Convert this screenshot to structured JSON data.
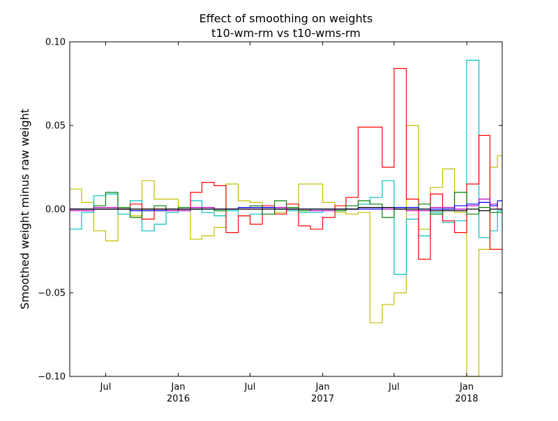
{
  "chart_data": {
    "type": "line",
    "title": "Effect of smoothing on weights",
    "subtitle": "t10-wm-rm vs t10-wms-rm",
    "xlabel": "",
    "ylabel": "Smoothed weight minus raw weight",
    "x_start": "2015-04-01",
    "x_end": "2018-04-01",
    "ylim": [
      -0.1,
      0.1
    ],
    "yticks": [
      0.1,
      0.05,
      0.0,
      -0.05,
      -0.1
    ],
    "ytick_labels": [
      "0.10",
      "0.05",
      "0.00",
      "−0.05",
      "−0.10"
    ],
    "xticks": [
      {
        "date": "2015-07-01",
        "label": "Jul",
        "year": ""
      },
      {
        "date": "2016-01-01",
        "label": "Jan",
        "year": "2016"
      },
      {
        "date": "2016-07-01",
        "label": "Jul",
        "year": ""
      },
      {
        "date": "2017-01-01",
        "label": "Jan",
        "year": "2017"
      },
      {
        "date": "2017-07-01",
        "label": "Jul",
        "year": ""
      },
      {
        "date": "2018-01-01",
        "label": "Jan",
        "year": "2018"
      }
    ],
    "grid": false,
    "legend": "none",
    "series": [
      {
        "color": "#bfbf00",
        "steps": [
          [
            "2015-04-01",
            0.012
          ],
          [
            "2015-05-01",
            0.004
          ],
          [
            "2015-06-01",
            -0.013
          ],
          [
            "2015-07-01",
            -0.019
          ],
          [
            "2015-08-01",
            0.001
          ],
          [
            "2015-09-01",
            -0.004
          ],
          [
            "2015-10-01",
            0.017
          ],
          [
            "2015-11-01",
            0.006
          ],
          [
            "2015-12-01",
            0.006
          ],
          [
            "2016-01-01",
            0.0
          ],
          [
            "2016-02-01",
            -0.018
          ],
          [
            "2016-03-01",
            -0.016
          ],
          [
            "2016-04-01",
            -0.011
          ],
          [
            "2016-05-01",
            0.015
          ],
          [
            "2016-06-01",
            0.005
          ],
          [
            "2016-07-01",
            0.004
          ],
          [
            "2016-08-01",
            0.001
          ],
          [
            "2016-09-01",
            -0.002
          ],
          [
            "2016-10-01",
            0.0
          ],
          [
            "2016-11-01",
            0.015
          ],
          [
            "2016-12-01",
            0.015
          ],
          [
            "2017-01-01",
            0.004
          ],
          [
            "2017-02-01",
            -0.002
          ],
          [
            "2017-03-01",
            -0.003
          ],
          [
            "2017-04-01",
            -0.002
          ],
          [
            "2017-05-01",
            -0.068
          ],
          [
            "2017-06-01",
            -0.057
          ],
          [
            "2017-07-01",
            -0.05
          ],
          [
            "2017-08-01",
            0.05
          ],
          [
            "2017-09-01",
            -0.012
          ],
          [
            "2017-10-01",
            0.013
          ],
          [
            "2017-11-01",
            0.024
          ],
          [
            "2017-12-01",
            -0.002
          ],
          [
            "2018-01-01",
            -0.1
          ],
          [
            "2018-02-01",
            -0.024
          ],
          [
            "2018-03-01",
            0.025
          ],
          [
            "2018-03-20",
            0.032
          ]
        ]
      },
      {
        "color": "#00bfbf",
        "steps": [
          [
            "2015-04-01",
            -0.012
          ],
          [
            "2015-05-01",
            -0.002
          ],
          [
            "2015-06-01",
            0.008
          ],
          [
            "2015-07-01",
            0.009
          ],
          [
            "2015-08-01",
            -0.003
          ],
          [
            "2015-09-01",
            0.005
          ],
          [
            "2015-10-01",
            -0.013
          ],
          [
            "2015-11-01",
            -0.009
          ],
          [
            "2015-12-01",
            -0.002
          ],
          [
            "2016-01-01",
            -0.001
          ],
          [
            "2016-02-01",
            0.005
          ],
          [
            "2016-03-01",
            -0.002
          ],
          [
            "2016-04-01",
            -0.004
          ],
          [
            "2016-05-01",
            -0.001
          ],
          [
            "2016-06-01",
            -0.004
          ],
          [
            "2016-07-01",
            -0.003
          ],
          [
            "2016-08-01",
            0.001
          ],
          [
            "2016-09-01",
            0.0
          ],
          [
            "2016-10-01",
            -0.001
          ],
          [
            "2016-11-01",
            -0.002
          ],
          [
            "2016-12-01",
            -0.002
          ],
          [
            "2017-01-01",
            -0.001
          ],
          [
            "2017-02-01",
            -0.001
          ],
          [
            "2017-03-01",
            0.0
          ],
          [
            "2017-04-01",
            0.003
          ],
          [
            "2017-05-01",
            0.007
          ],
          [
            "2017-06-01",
            0.017
          ],
          [
            "2017-07-01",
            -0.039
          ],
          [
            "2017-08-01",
            -0.006
          ],
          [
            "2017-09-01",
            -0.016
          ],
          [
            "2017-10-01",
            -0.002
          ],
          [
            "2017-11-01",
            -0.008
          ],
          [
            "2017-12-01",
            -0.007
          ],
          [
            "2018-01-01",
            0.089
          ],
          [
            "2018-02-01",
            -0.017
          ],
          [
            "2018-03-01",
            -0.013
          ],
          [
            "2018-03-20",
            -0.001
          ]
        ]
      },
      {
        "color": "#ff0000",
        "steps": [
          [
            "2015-04-01",
            0.0
          ],
          [
            "2015-05-01",
            0.0
          ],
          [
            "2015-06-01",
            0.0
          ],
          [
            "2015-07-01",
            0.0
          ],
          [
            "2015-08-01",
            0.0
          ],
          [
            "2015-09-01",
            0.003
          ],
          [
            "2015-10-01",
            -0.006
          ],
          [
            "2015-11-01",
            0.0
          ],
          [
            "2015-12-01",
            0.0
          ],
          [
            "2016-01-01",
            0.0
          ],
          [
            "2016-02-01",
            0.01
          ],
          [
            "2016-03-01",
            0.016
          ],
          [
            "2016-04-01",
            0.014
          ],
          [
            "2016-05-01",
            -0.014
          ],
          [
            "2016-06-01",
            -0.004
          ],
          [
            "2016-07-01",
            -0.009
          ],
          [
            "2016-08-01",
            0.002
          ],
          [
            "2016-09-01",
            -0.003
          ],
          [
            "2016-10-01",
            0.003
          ],
          [
            "2016-11-01",
            -0.01
          ],
          [
            "2016-12-01",
            -0.012
          ],
          [
            "2017-01-01",
            -0.005
          ],
          [
            "2017-02-01",
            0.002
          ],
          [
            "2017-03-01",
            0.007
          ],
          [
            "2017-04-01",
            0.049
          ],
          [
            "2017-05-01",
            0.049
          ],
          [
            "2017-06-01",
            0.025
          ],
          [
            "2017-07-01",
            0.084
          ],
          [
            "2017-08-01",
            0.006
          ],
          [
            "2017-09-01",
            -0.03
          ],
          [
            "2017-10-01",
            0.009
          ],
          [
            "2017-11-01",
            -0.007
          ],
          [
            "2017-12-01",
            -0.014
          ],
          [
            "2018-01-01",
            0.015
          ],
          [
            "2018-02-01",
            0.044
          ],
          [
            "2018-03-01",
            -0.024
          ],
          [
            "2018-03-20",
            -0.024
          ]
        ]
      },
      {
        "color": "#008000",
        "steps": [
          [
            "2015-04-01",
            0.0
          ],
          [
            "2015-05-01",
            0.0
          ],
          [
            "2015-06-01",
            0.002
          ],
          [
            "2015-07-01",
            0.01
          ],
          [
            "2015-08-01",
            0.001
          ],
          [
            "2015-09-01",
            -0.005
          ],
          [
            "2015-10-01",
            0.0
          ],
          [
            "2015-11-01",
            0.002
          ],
          [
            "2015-12-01",
            -0.001
          ],
          [
            "2016-01-01",
            0.001
          ],
          [
            "2016-02-01",
            0.0
          ],
          [
            "2016-03-01",
            0.001
          ],
          [
            "2016-04-01",
            -0.001
          ],
          [
            "2016-05-01",
            0.0
          ],
          [
            "2016-06-01",
            0.001
          ],
          [
            "2016-07-01",
            0.002
          ],
          [
            "2016-08-01",
            -0.003
          ],
          [
            "2016-09-01",
            0.005
          ],
          [
            "2016-10-01",
            0.001
          ],
          [
            "2016-11-01",
            -0.001
          ],
          [
            "2016-12-01",
            0.0
          ],
          [
            "2017-01-01",
            0.0
          ],
          [
            "2017-02-01",
            -0.001
          ],
          [
            "2017-03-01",
            0.002
          ],
          [
            "2017-04-01",
            0.005
          ],
          [
            "2017-05-01",
            0.003
          ],
          [
            "2017-06-01",
            -0.005
          ],
          [
            "2017-07-01",
            0.001
          ],
          [
            "2017-08-01",
            0.0
          ],
          [
            "2017-09-01",
            0.003
          ],
          [
            "2017-10-01",
            -0.003
          ],
          [
            "2017-11-01",
            0.0
          ],
          [
            "2017-12-01",
            0.01
          ],
          [
            "2018-01-01",
            -0.003
          ],
          [
            "2018-02-01",
            0.001
          ],
          [
            "2018-03-01",
            -0.002
          ],
          [
            "2018-03-20",
            -0.002
          ]
        ]
      },
      {
        "color": "#bf00bf",
        "steps": [
          [
            "2015-04-01",
            -0.001
          ],
          [
            "2015-06-01",
            0.001
          ],
          [
            "2015-08-01",
            0.0
          ],
          [
            "2015-10-01",
            0.0
          ],
          [
            "2015-12-01",
            -0.001
          ],
          [
            "2016-02-01",
            0.001
          ],
          [
            "2016-04-01",
            0.0
          ],
          [
            "2016-06-01",
            0.0
          ],
          [
            "2016-08-01",
            0.001
          ],
          [
            "2016-10-01",
            0.0
          ],
          [
            "2016-12-01",
            -0.001
          ],
          [
            "2017-02-01",
            0.0
          ],
          [
            "2017-04-01",
            0.001
          ],
          [
            "2017-06-01",
            0.0
          ],
          [
            "2017-08-01",
            -0.001
          ],
          [
            "2017-10-01",
            0.001
          ],
          [
            "2017-12-01",
            0.0
          ],
          [
            "2018-01-01",
            0.002
          ],
          [
            "2018-02-01",
            0.006
          ],
          [
            "2018-03-01",
            0.003
          ],
          [
            "2018-03-20",
            0.0
          ]
        ]
      },
      {
        "color": "#0000ff",
        "steps": [
          [
            "2015-04-01",
            0.0
          ],
          [
            "2015-06-01",
            0.0
          ],
          [
            "2015-09-01",
            -0.001
          ],
          [
            "2015-12-01",
            0.0
          ],
          [
            "2016-03-01",
            0.0
          ],
          [
            "2016-06-01",
            0.001
          ],
          [
            "2016-09-01",
            0.0
          ],
          [
            "2016-12-01",
            0.0
          ],
          [
            "2017-03-01",
            0.0
          ],
          [
            "2017-06-01",
            0.001
          ],
          [
            "2017-09-01",
            0.0
          ],
          [
            "2017-12-01",
            0.002
          ],
          [
            "2018-01-01",
            0.003
          ],
          [
            "2018-02-01",
            0.004
          ],
          [
            "2018-03-01",
            0.002
          ],
          [
            "2018-03-20",
            0.005
          ]
        ]
      },
      {
        "color": "#000000",
        "steps": [
          [
            "2015-04-01",
            0.0
          ],
          [
            "2015-07-01",
            0.0
          ],
          [
            "2015-10-01",
            0.0
          ],
          [
            "2016-01-01",
            0.0
          ],
          [
            "2016-04-01",
            0.0
          ],
          [
            "2016-07-01",
            0.0
          ],
          [
            "2016-10-01",
            0.0
          ],
          [
            "2017-01-01",
            0.0
          ],
          [
            "2017-04-01",
            0.001
          ],
          [
            "2017-07-01",
            0.0
          ],
          [
            "2017-10-01",
            -0.001
          ],
          [
            "2018-01-01",
            0.0
          ],
          [
            "2018-02-01",
            -0.001
          ],
          [
            "2018-03-01",
            0.0
          ],
          [
            "2018-03-20",
            0.0
          ]
        ]
      }
    ]
  }
}
